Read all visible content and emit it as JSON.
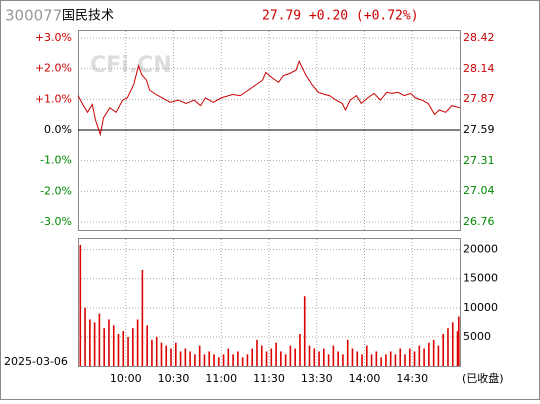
{
  "header": {
    "code": "300077",
    "name": "国民技术",
    "quote": "27.79 +0.20 (+0.72%)"
  },
  "chart_data": [
    {
      "type": "line",
      "watermark": "CFi.CN",
      "xlim": [
        0,
        240
      ],
      "grid": true,
      "ylim": [
        -3,
        3
      ],
      "yticks": [
        {
          "value": 3,
          "label": "+3.0%"
        },
        {
          "value": 2,
          "label": "+2.0%"
        },
        {
          "value": 1,
          "label": "+1.0%"
        },
        {
          "value": 0,
          "label": "0.0%"
        },
        {
          "value": -1,
          "label": "-1.0%"
        },
        {
          "value": -2,
          "label": "-2.0%"
        },
        {
          "value": -3,
          "label": "-3.0%"
        }
      ],
      "y2lim": [
        26.76,
        28.42
      ],
      "y2ticks": [
        28.42,
        28.14,
        27.87,
        27.59,
        27.31,
        27.04,
        26.76
      ],
      "series": [
        {
          "color": "#cc0000",
          "axis": "y2",
          "x": [
            0,
            3,
            6,
            9,
            11,
            14,
            16,
            20,
            24,
            28,
            31,
            35,
            38,
            40,
            43,
            45,
            49,
            53,
            58,
            63,
            68,
            73,
            77,
            80,
            85,
            90,
            97,
            102,
            107,
            112,
            116,
            118,
            122,
            126,
            129,
            133,
            137,
            139,
            143,
            147,
            151,
            155,
            158,
            162,
            166,
            168,
            171,
            175,
            178,
            182,
            186,
            190,
            194,
            197,
            201,
            205,
            209,
            212,
            216,
            220,
            224,
            227,
            231,
            235,
            240
          ],
          "values": [
            27.9,
            27.82,
            27.75,
            27.82,
            27.68,
            27.55,
            27.7,
            27.79,
            27.75,
            27.86,
            27.88,
            28.0,
            28.17,
            28.09,
            28.04,
            27.95,
            27.91,
            27.88,
            27.84,
            27.86,
            27.83,
            27.86,
            27.81,
            27.88,
            27.84,
            27.88,
            27.91,
            27.9,
            27.95,
            28.0,
            28.04,
            28.11,
            28.06,
            28.02,
            28.08,
            28.1,
            28.13,
            28.21,
            28.09,
            28.0,
            27.93,
            27.91,
            27.9,
            27.86,
            27.83,
            27.77,
            27.86,
            27.9,
            27.83,
            27.88,
            27.92,
            27.86,
            27.93,
            27.92,
            27.93,
            27.9,
            27.92,
            27.88,
            27.86,
            27.83,
            27.73,
            27.77,
            27.75,
            27.81,
            27.79
          ]
        }
      ]
    },
    {
      "type": "bar",
      "xlim": [
        0,
        240
      ],
      "ylim": [
        0,
        22000
      ],
      "yticks": [
        20000,
        15000,
        10000,
        5000
      ],
      "xticks": [
        {
          "value": 30,
          "label": "10:00"
        },
        {
          "value": 60,
          "label": "10:30"
        },
        {
          "value": 90,
          "label": "11:00"
        },
        {
          "value": 120,
          "label": "11:30"
        },
        {
          "value": 150,
          "label": "13:30"
        },
        {
          "value": 180,
          "label": "14:00"
        },
        {
          "value": 210,
          "label": "14:30"
        }
      ],
      "date": "2025-03-06",
      "status": "(已收盘)",
      "color": "#dd0000",
      "x": [
        0,
        3,
        6,
        9,
        12,
        15,
        18,
        21,
        24,
        27,
        30,
        33,
        36,
        39,
        42,
        45,
        48,
        51,
        54,
        57,
        60,
        63,
        66,
        69,
        72,
        75,
        78,
        81,
        84,
        87,
        90,
        93,
        96,
        99,
        102,
        105,
        108,
        111,
        114,
        117,
        120,
        123,
        126,
        129,
        132,
        135,
        138,
        141,
        144,
        147,
        150,
        153,
        156,
        159,
        162,
        165,
        168,
        171,
        174,
        177,
        180,
        183,
        186,
        189,
        192,
        195,
        198,
        201,
        204,
        207,
        210,
        213,
        216,
        219,
        222,
        225,
        228,
        231,
        234,
        237,
        240
      ],
      "values": [
        20800,
        10000,
        8000,
        7500,
        9000,
        6500,
        8000,
        7000,
        5500,
        6000,
        5000,
        6500,
        8000,
        16500,
        7000,
        4500,
        5000,
        4000,
        3500,
        3000,
        4000,
        2500,
        3000,
        2500,
        2000,
        3500,
        2000,
        2500,
        2000,
        1500,
        2000,
        3000,
        2000,
        2500,
        1500,
        2000,
        3000,
        4500,
        3500,
        2500,
        3000,
        4000,
        2500,
        2000,
        3500,
        3000,
        5500,
        12000,
        3500,
        3000,
        2500,
        3000,
        2000,
        3500,
        2500,
        2000,
        4500,
        3000,
        2500,
        2000,
        3500,
        2000,
        2500,
        1500,
        2000,
        2500,
        2000,
        3000,
        2000,
        3000,
        2500,
        3500,
        3000,
        4000,
        4500,
        3500,
        5500,
        6500,
        7500,
        6000,
        8500
      ]
    }
  ]
}
